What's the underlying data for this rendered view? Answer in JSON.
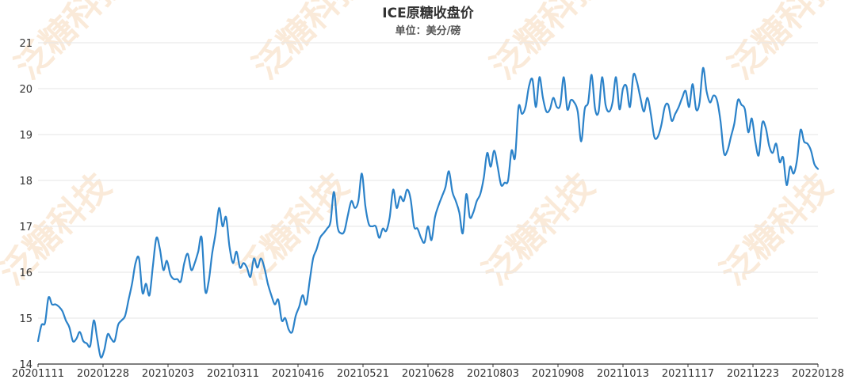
{
  "chart_data": {
    "type": "line",
    "title": "ICE原糖收盘价",
    "subtitle": "单位：美分/磅",
    "xlabel": "",
    "ylabel": "",
    "ylim": [
      14,
      21
    ],
    "y_ticks": [
      14,
      15,
      16,
      17,
      18,
      19,
      20,
      21
    ],
    "x_tick_labels": [
      "20201111",
      "20201228",
      "20210203",
      "20210311",
      "20210416",
      "20210521",
      "20210628",
      "20210803",
      "20210908",
      "20211013",
      "20211117",
      "20211223",
      "20220128"
    ],
    "grid": true,
    "color": "#2b82c9",
    "series": [
      {
        "values": [
          14.5,
          14.85,
          14.9,
          15.45,
          15.3,
          15.3,
          15.25,
          15.15,
          14.95,
          14.8,
          14.5,
          14.55,
          14.7,
          14.5,
          14.45,
          14.4,
          14.95,
          14.55,
          14.15,
          14.3,
          14.65,
          14.55,
          14.5,
          14.85,
          14.95,
          15.05,
          15.4,
          15.75,
          16.2,
          16.3,
          15.55,
          15.75,
          15.5,
          16.15,
          16.75,
          16.5,
          16.05,
          16.25,
          15.95,
          15.85,
          15.85,
          15.8,
          16.2,
          16.4,
          16.05,
          16.2,
          16.45,
          16.75,
          15.6,
          15.8,
          16.4,
          16.85,
          17.4,
          17.0,
          17.2,
          16.55,
          16.2,
          16.45,
          16.1,
          16.2,
          16.1,
          15.9,
          16.3,
          16.1,
          16.3,
          16.1,
          15.75,
          15.5,
          15.3,
          15.4,
          14.95,
          15.0,
          14.75,
          14.7,
          15.05,
          15.25,
          15.5,
          15.3,
          15.8,
          16.3,
          16.5,
          16.75,
          16.85,
          16.95,
          17.1,
          17.75,
          17.0,
          16.85,
          16.9,
          17.25,
          17.55,
          17.4,
          17.55,
          18.15,
          17.45,
          17.05,
          17.0,
          17.0,
          16.75,
          16.95,
          16.9,
          17.2,
          17.8,
          17.4,
          17.65,
          17.55,
          17.8,
          17.6,
          17.0,
          16.95,
          16.75,
          16.65,
          17.0,
          16.7,
          17.2,
          17.45,
          17.65,
          17.85,
          18.2,
          17.75,
          17.55,
          17.3,
          16.85,
          17.7,
          17.2,
          17.3,
          17.55,
          17.7,
          18.05,
          18.6,
          18.3,
          18.65,
          18.3,
          17.9,
          17.95,
          18.0,
          18.65,
          18.5,
          19.6,
          19.45,
          19.6,
          20.05,
          20.2,
          19.6,
          20.25,
          19.8,
          19.5,
          19.55,
          19.8,
          19.6,
          19.65,
          20.25,
          19.55,
          19.75,
          19.7,
          19.5,
          18.85,
          19.55,
          19.7,
          20.3,
          19.55,
          19.5,
          20.25,
          19.65,
          19.5,
          19.7,
          20.25,
          19.55,
          20.0,
          20.05,
          19.6,
          20.3,
          20.15,
          19.8,
          19.5,
          19.8,
          19.45,
          18.95,
          18.95,
          19.2,
          19.6,
          19.65,
          19.3,
          19.45,
          19.6,
          19.8,
          19.95,
          19.6,
          20.1,
          19.55,
          19.7,
          20.45,
          19.95,
          19.7,
          19.85,
          19.75,
          19.3,
          18.6,
          18.65,
          18.95,
          19.25,
          19.75,
          19.65,
          19.55,
          19.05,
          19.35,
          18.85,
          18.55,
          19.25,
          19.15,
          18.75,
          18.6,
          18.8,
          18.4,
          18.5,
          17.9,
          18.3,
          18.15,
          18.45,
          19.1,
          18.85,
          18.8,
          18.65,
          18.35,
          18.25
        ]
      }
    ]
  },
  "watermark": {
    "text": "泛糖科技"
  }
}
